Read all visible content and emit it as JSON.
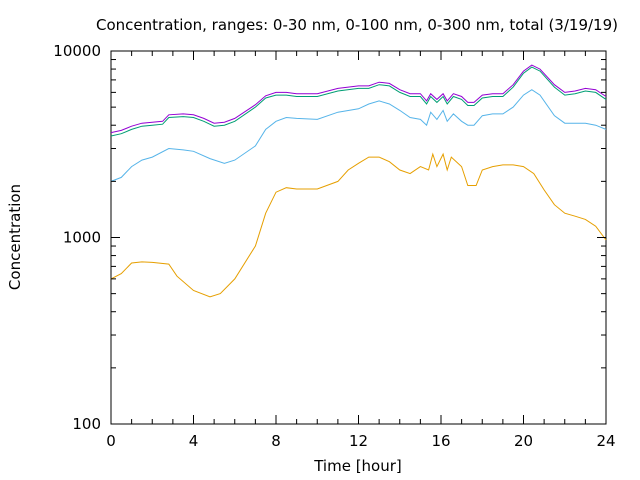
{
  "chart_data": {
    "type": "line",
    "title": "Concentration, ranges: 0-30 nm, 0-100 nm, 0-300 nm, total (3/19/19)",
    "xlabel": "Time [hour]",
    "ylabel": "Concentration",
    "xlim": [
      0,
      24
    ],
    "ylim": [
      100,
      10000
    ],
    "yscale": "log",
    "grid": false,
    "legend": "none",
    "x_ticks": [
      "0",
      "4",
      "8",
      "12",
      "16",
      "20",
      "24"
    ],
    "y_ticks": [
      "100",
      "1000",
      "10000"
    ],
    "series": [
      {
        "color": "#e69f00",
        "points": [
          [
            0,
            600
          ],
          [
            0.5,
            640
          ],
          [
            1,
            730
          ],
          [
            1.5,
            740
          ],
          [
            2,
            735
          ],
          [
            2.8,
            720
          ],
          [
            3.2,
            620
          ],
          [
            4,
            520
          ],
          [
            4.8,
            480
          ],
          [
            5.3,
            500
          ],
          [
            6,
            600
          ],
          [
            7,
            900
          ],
          [
            7.5,
            1350
          ],
          [
            8,
            1750
          ],
          [
            8.5,
            1850
          ],
          [
            9,
            1820
          ],
          [
            10,
            1820
          ],
          [
            11,
            2000
          ],
          [
            11.5,
            2300
          ],
          [
            12,
            2500
          ],
          [
            12.5,
            2700
          ],
          [
            13,
            2700
          ],
          [
            13.5,
            2550
          ],
          [
            14,
            2300
          ],
          [
            14.5,
            2200
          ],
          [
            15,
            2400
          ],
          [
            15.4,
            2300
          ],
          [
            15.6,
            2800
          ],
          [
            15.8,
            2400
          ],
          [
            16.1,
            2800
          ],
          [
            16.3,
            2300
          ],
          [
            16.5,
            2700
          ],
          [
            17,
            2400
          ],
          [
            17.3,
            1900
          ],
          [
            17.7,
            1900
          ],
          [
            18,
            2300
          ],
          [
            18.5,
            2400
          ],
          [
            19,
            2450
          ],
          [
            19.5,
            2450
          ],
          [
            20,
            2400
          ],
          [
            20.5,
            2200
          ],
          [
            21,
            1800
          ],
          [
            21.5,
            1500
          ],
          [
            22,
            1350
          ],
          [
            22.5,
            1300
          ],
          [
            23,
            1250
          ],
          [
            23.5,
            1150
          ],
          [
            24,
            970
          ]
        ]
      },
      {
        "color": "#56b4e9",
        "points": [
          [
            0,
            2000
          ],
          [
            0.5,
            2100
          ],
          [
            1,
            2400
          ],
          [
            1.5,
            2600
          ],
          [
            2,
            2700
          ],
          [
            2.8,
            3000
          ],
          [
            3.5,
            2950
          ],
          [
            4,
            2900
          ],
          [
            4.8,
            2650
          ],
          [
            5.5,
            2500
          ],
          [
            6,
            2600
          ],
          [
            7,
            3100
          ],
          [
            7.5,
            3800
          ],
          [
            8,
            4200
          ],
          [
            8.5,
            4400
          ],
          [
            9,
            4350
          ],
          [
            10,
            4300
          ],
          [
            11,
            4700
          ],
          [
            12,
            4900
          ],
          [
            12.5,
            5200
          ],
          [
            13,
            5400
          ],
          [
            13.5,
            5200
          ],
          [
            14,
            4800
          ],
          [
            14.5,
            4400
          ],
          [
            15,
            4300
          ],
          [
            15.3,
            4000
          ],
          [
            15.5,
            4700
          ],
          [
            15.8,
            4300
          ],
          [
            16.1,
            4800
          ],
          [
            16.3,
            4200
          ],
          [
            16.6,
            4600
          ],
          [
            17,
            4200
          ],
          [
            17.3,
            4000
          ],
          [
            17.6,
            4000
          ],
          [
            18,
            4500
          ],
          [
            18.5,
            4600
          ],
          [
            19,
            4600
          ],
          [
            19.5,
            5000
          ],
          [
            20,
            5800
          ],
          [
            20.4,
            6200
          ],
          [
            20.8,
            5800
          ],
          [
            21.5,
            4500
          ],
          [
            22,
            4100
          ],
          [
            22.5,
            4100
          ],
          [
            23,
            4100
          ],
          [
            23.5,
            4000
          ],
          [
            24,
            3800
          ]
        ]
      },
      {
        "color": "#009e73",
        "points": [
          [
            0,
            3500
          ],
          [
            0.5,
            3600
          ],
          [
            1,
            3800
          ],
          [
            1.5,
            3950
          ],
          [
            2,
            4000
          ],
          [
            2.5,
            4050
          ],
          [
            2.8,
            4400
          ],
          [
            3.5,
            4450
          ],
          [
            4,
            4400
          ],
          [
            4.5,
            4200
          ],
          [
            5,
            3950
          ],
          [
            5.5,
            4000
          ],
          [
            6,
            4200
          ],
          [
            7,
            5000
          ],
          [
            7.5,
            5600
          ],
          [
            8,
            5800
          ],
          [
            8.5,
            5800
          ],
          [
            9,
            5700
          ],
          [
            10,
            5700
          ],
          [
            11,
            6100
          ],
          [
            12,
            6300
          ],
          [
            12.5,
            6300
          ],
          [
            13,
            6600
          ],
          [
            13.5,
            6500
          ],
          [
            14,
            6000
          ],
          [
            14.5,
            5700
          ],
          [
            15,
            5700
          ],
          [
            15.3,
            5200
          ],
          [
            15.5,
            5700
          ],
          [
            15.8,
            5300
          ],
          [
            16.1,
            5700
          ],
          [
            16.3,
            5200
          ],
          [
            16.6,
            5700
          ],
          [
            17,
            5500
          ],
          [
            17.3,
            5100
          ],
          [
            17.6,
            5100
          ],
          [
            18,
            5600
          ],
          [
            18.5,
            5700
          ],
          [
            19,
            5700
          ],
          [
            19.5,
            6400
          ],
          [
            20,
            7600
          ],
          [
            20.4,
            8200
          ],
          [
            20.8,
            7800
          ],
          [
            21.5,
            6400
          ],
          [
            22,
            5800
          ],
          [
            22.5,
            5900
          ],
          [
            23,
            6100
          ],
          [
            23.5,
            6000
          ],
          [
            24,
            5500
          ]
        ]
      },
      {
        "color": "#9400d3",
        "points": [
          [
            0,
            3650
          ],
          [
            0.5,
            3750
          ],
          [
            1,
            3950
          ],
          [
            1.5,
            4100
          ],
          [
            2,
            4150
          ],
          [
            2.5,
            4200
          ],
          [
            2.8,
            4550
          ],
          [
            3.5,
            4600
          ],
          [
            4,
            4550
          ],
          [
            4.5,
            4350
          ],
          [
            5,
            4100
          ],
          [
            5.5,
            4150
          ],
          [
            6,
            4350
          ],
          [
            7,
            5150
          ],
          [
            7.5,
            5750
          ],
          [
            8,
            6000
          ],
          [
            8.5,
            6000
          ],
          [
            9,
            5900
          ],
          [
            10,
            5900
          ],
          [
            11,
            6300
          ],
          [
            12,
            6500
          ],
          [
            12.5,
            6500
          ],
          [
            13,
            6800
          ],
          [
            13.5,
            6700
          ],
          [
            14,
            6200
          ],
          [
            14.5,
            5900
          ],
          [
            15,
            5900
          ],
          [
            15.3,
            5400
          ],
          [
            15.5,
            5900
          ],
          [
            15.8,
            5500
          ],
          [
            16.1,
            5900
          ],
          [
            16.3,
            5400
          ],
          [
            16.6,
            5900
          ],
          [
            17,
            5700
          ],
          [
            17.3,
            5300
          ],
          [
            17.6,
            5300
          ],
          [
            18,
            5800
          ],
          [
            18.5,
            5900
          ],
          [
            19,
            5900
          ],
          [
            19.5,
            6600
          ],
          [
            20,
            7800
          ],
          [
            20.4,
            8400
          ],
          [
            20.8,
            8000
          ],
          [
            21.5,
            6600
          ],
          [
            22,
            6000
          ],
          [
            22.5,
            6100
          ],
          [
            23,
            6300
          ],
          [
            23.5,
            6200
          ],
          [
            24,
            5700
          ]
        ]
      }
    ]
  }
}
